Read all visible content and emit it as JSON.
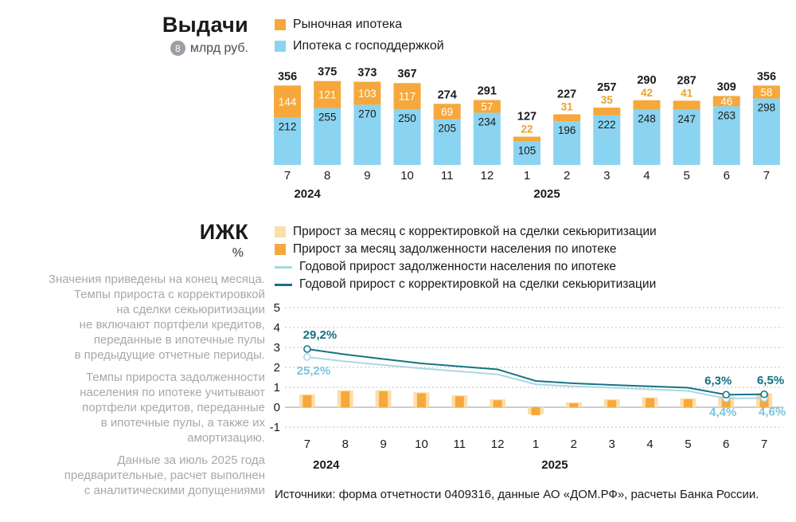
{
  "issuance": {
    "title": "Выдачи",
    "footnote": "8",
    "unit": "млрд руб.",
    "legend": [
      {
        "label": "Рыночная ипотека",
        "color": "#F6A83C",
        "type": "square"
      },
      {
        "label": "Ипотека с господдержкой",
        "color": "#8BD4F1",
        "type": "square"
      }
    ]
  },
  "izhk": {
    "title": "ИЖК",
    "unit": "%",
    "legend": [
      {
        "label": "Прирост за месяц с корректировкой на сделки секьюритизации",
        "color": "#FBDFA8",
        "type": "square"
      },
      {
        "label": "Прирост за месяц задолженности населения по ипотеке",
        "color": "#F6A83C",
        "type": "square"
      },
      {
        "label": "Годовой прирост задолженности населения по ипотеке",
        "color": "#A9D8E6",
        "type": "line"
      },
      {
        "label": "Годовой прирост с корректировкой на сделки секьюритизации",
        "color": "#177486",
        "type": "line"
      }
    ]
  },
  "notes": [
    "Значения приведены на конец месяца.\nТемпы прироста с корректировкой\nна сделки секьюритизации\nне включают портфели кредитов,\nпереданные в ипотечные пулы\nв предыдущие отчетные периоды.",
    "Темпы прироста задолженности\nнаселения по ипотеке учитывают\nпортфели кредитов, переданные\nв ипотечные пулы, а также их\nамортизацию.",
    "Данные за июль 2025 года\nпредварительные, расчет выполнен\nс аналитическими допущениями"
  ],
  "source": "Источники: форма отчетности 0409316, данные АО «ДОМ.РФ», расчеты Банка России.",
  "chart_data": [
    {
      "type": "bar",
      "stacked": true,
      "title": "Выдачи, млрд руб.",
      "categories": [
        "7",
        "8",
        "9",
        "10",
        "11",
        "12",
        "1",
        "2",
        "3",
        "4",
        "5",
        "6",
        "7"
      ],
      "year_labels": [
        {
          "label": "2024",
          "index": 0.5
        },
        {
          "label": "2025",
          "index": 6.5
        }
      ],
      "series": [
        {
          "name": "Ипотека с господдержкой",
          "color": "#8BD4F1",
          "values": [
            212,
            255,
            270,
            250,
            205,
            234,
            105,
            196,
            222,
            248,
            247,
            263,
            298
          ]
        },
        {
          "name": "Рыночная ипотека",
          "color": "#F6A83C",
          "label_color": "#EDA02E",
          "values": [
            144,
            121,
            103,
            117,
            69,
            57,
            22,
            31,
            35,
            42,
            41,
            46,
            58
          ]
        }
      ],
      "totals": [
        356,
        375,
        373,
        367,
        274,
        291,
        127,
        227,
        257,
        290,
        287,
        309,
        356
      ]
    },
    {
      "type": "combo",
      "title": "ИЖК, %",
      "categories": [
        "7",
        "8",
        "9",
        "10",
        "11",
        "12",
        "1",
        "2",
        "3",
        "4",
        "5",
        "6",
        "7"
      ],
      "ylim": [
        -1,
        5
      ],
      "yticks": [
        5,
        4,
        3,
        2,
        1,
        0,
        -1
      ],
      "grid": "dotted",
      "year_labels": [
        {
          "label": "2024",
          "index": 0.5
        },
        {
          "label": "2025",
          "index": 6.5
        }
      ],
      "bar_series": [
        {
          "name": "Прирост за месяц с корректировкой на сделки секьюритизации",
          "color": "#FBDFA8",
          "values": [
            0.65,
            0.85,
            0.85,
            0.75,
            0.6,
            0.4,
            -0.35,
            0.25,
            0.4,
            0.5,
            0.45,
            0.55,
            0.7
          ]
        },
        {
          "name": "Прирост за месяц задолженности населения по ипотеке",
          "color": "#F6A83C",
          "values": [
            0.6,
            0.8,
            0.8,
            0.7,
            0.55,
            0.35,
            -0.4,
            0.2,
            0.35,
            0.45,
            0.4,
            0.5,
            0.65
          ]
        }
      ],
      "line_series": [
        {
          "name": "Годовой прирост задолженности населения по ипотеке",
          "color": "#A9D8E6",
          "label_color": "#79C6DD",
          "values": [
            2.52,
            2.3,
            2.12,
            1.95,
            1.8,
            1.65,
            1.15,
            1.05,
            0.98,
            0.9,
            0.82,
            0.44,
            0.46
          ],
          "markers": [
            0,
            11,
            12
          ],
          "annotations": [
            {
              "index": 0,
              "label": "25,2%",
              "position": "below",
              "dx": 8
            },
            {
              "index": 11,
              "label": "4,4%",
              "position": "below",
              "dx": -4
            },
            {
              "index": 12,
              "label": "4,6%",
              "position": "below",
              "dx": 10
            }
          ]
        },
        {
          "name": "Годовой прирост с корректировкой на сделки секьюритизации",
          "color": "#177486",
          "label_color": "#157082",
          "values": [
            2.92,
            2.65,
            2.42,
            2.2,
            2.05,
            1.9,
            1.32,
            1.2,
            1.12,
            1.05,
            0.98,
            0.63,
            0.65
          ],
          "markers": [
            0,
            11,
            12
          ],
          "annotations": [
            {
              "index": 0,
              "label": "29,2%",
              "position": "above",
              "dx": 16
            },
            {
              "index": 11,
              "label": "6,3%",
              "position": "above",
              "dx": -10
            },
            {
              "index": 12,
              "label": "6,5%",
              "position": "above",
              "dx": 8
            }
          ]
        }
      ]
    }
  ]
}
